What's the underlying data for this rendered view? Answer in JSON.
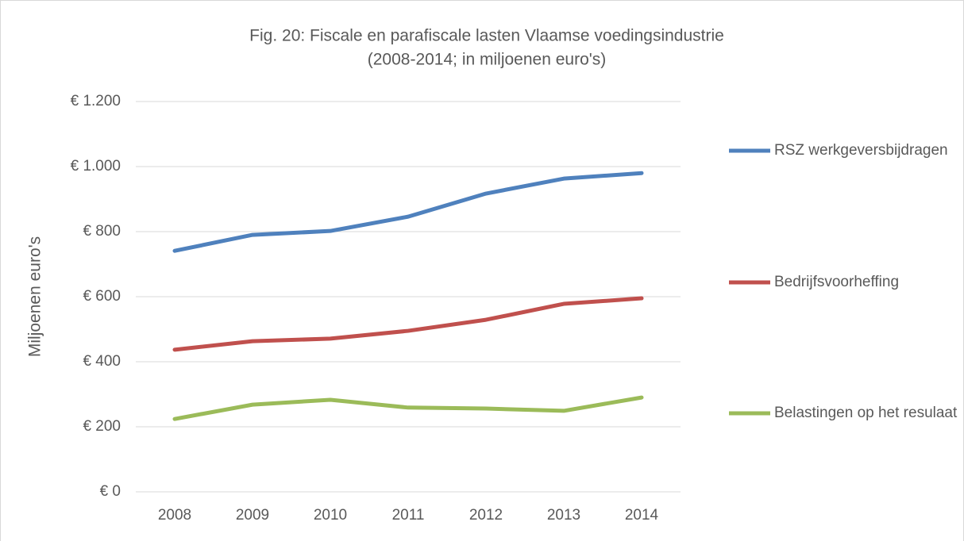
{
  "chart_data": {
    "type": "line",
    "title": "Fig. 20: Fiscale en parafiscale lasten Vlaamse voedingsindustrie",
    "subtitle": "(2008-2014; in miljoenen euro's)",
    "y_label": "Miljoenen euro's",
    "categories": [
      "2008",
      "2009",
      "2010",
      "2011",
      "2012",
      "2013",
      "2014"
    ],
    "series": [
      {
        "name": "RSZ werkgeversbijdragen",
        "color": "#4f81bd",
        "values": [
          741,
          790,
          802,
          846,
          917,
          963,
          980
        ]
      },
      {
        "name": "Bedrijfsvoorheffing",
        "color": "#c0504d",
        "values": [
          437,
          463,
          471,
          495,
          529,
          578,
          595
        ]
      },
      {
        "name": "Belastingen op het resulaat",
        "color": "#9bbb59",
        "values": [
          224,
          268,
          283,
          259,
          256,
          249,
          290
        ]
      }
    ],
    "ylim": [
      0,
      1200
    ],
    "yticks": [
      {
        "value": 0,
        "label": "€ 0"
      },
      {
        "value": 200,
        "label": "€ 200"
      },
      {
        "value": 400,
        "label": "€ 400"
      },
      {
        "value": 600,
        "label": "€ 600"
      },
      {
        "value": 800,
        "label": "€ 800"
      },
      {
        "value": 1000,
        "label": "€ 1.000"
      },
      {
        "value": 1200,
        "label": "€ 1.200"
      }
    ],
    "grid": true,
    "legend": "right"
  }
}
